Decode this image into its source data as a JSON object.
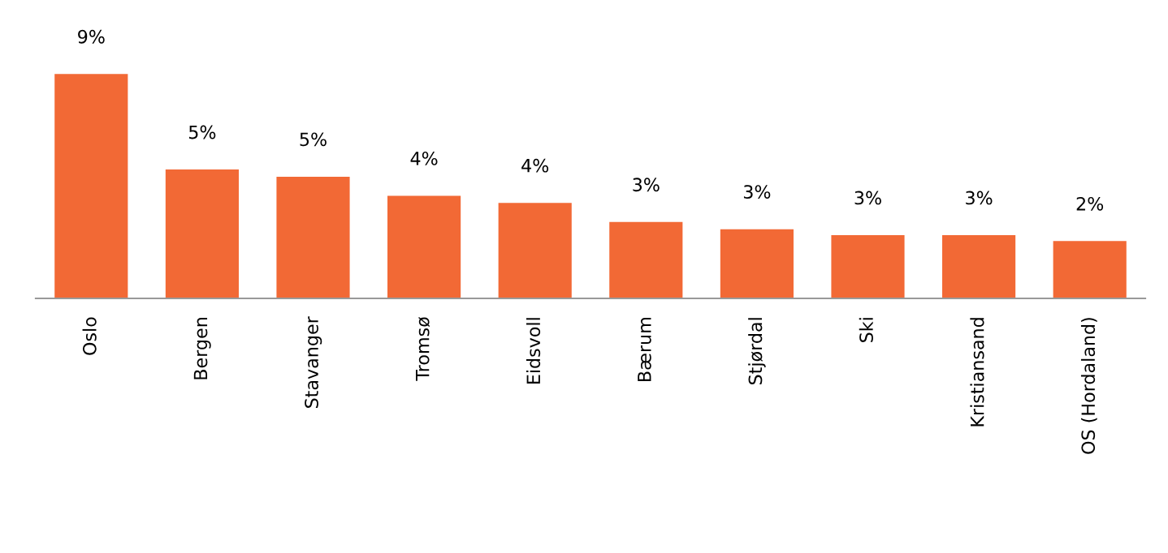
{
  "chart_data": {
    "type": "bar",
    "categories": [
      "Oslo",
      "Bergen",
      "Stavanger",
      "Tromsø",
      "Eidsvoll",
      "Bærum",
      "Stjørdal",
      "Ski",
      "Kristiansand",
      "OS (Hordaland)"
    ],
    "values": [
      9.4,
      5.4,
      5.1,
      4.3,
      4.0,
      3.2,
      2.9,
      2.65,
      2.65,
      2.4
    ],
    "value_labels": [
      "9%",
      "5%",
      "5%",
      "4%",
      "4%",
      "3%",
      "3%",
      "3%",
      "3%",
      "2%"
    ],
    "color": "#f26935",
    "grid": false,
    "legend": false
  }
}
